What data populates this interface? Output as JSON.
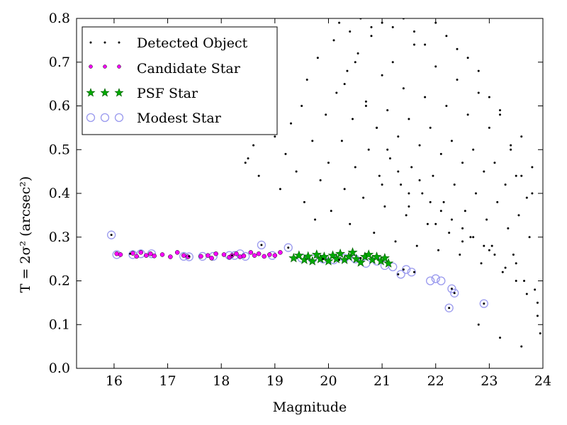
{
  "chart_data": {
    "type": "scatter",
    "xlabel": "Magnitude",
    "ylabel": "T = 2σ² (arcsec²)",
    "xlim": [
      15.3,
      24.0
    ],
    "ylim": [
      0.0,
      0.8
    ],
    "x_ticks": [
      "16",
      "17",
      "18",
      "19",
      "20",
      "21",
      "22",
      "23",
      "24"
    ],
    "y_ticks": [
      "0.0",
      "0.1",
      "0.2",
      "0.3",
      "0.4",
      "0.5",
      "0.6",
      "0.7",
      "0.8"
    ],
    "grid": false,
    "legend_position": "top-left",
    "legend": [
      {
        "label": "Detected Object",
        "marker": "dot",
        "color": "#000000"
      },
      {
        "label": "Candidate Star",
        "marker": "small-circle",
        "color": "#ff00ff"
      },
      {
        "label": "PSF Star",
        "marker": "star",
        "color": "#00aa00"
      },
      {
        "label": "Modest Star",
        "marker": "open-circle",
        "color": "#9999ee"
      }
    ],
    "series": [
      {
        "name": "Candidate Star",
        "x": [
          16.05,
          16.12,
          16.35,
          16.42,
          16.5,
          16.6,
          16.68,
          16.75,
          16.9,
          17.05,
          17.18,
          17.3,
          17.38,
          17.62,
          17.75,
          17.82,
          17.9,
          18.05,
          18.15,
          18.2,
          18.28,
          18.35,
          18.42,
          18.55,
          18.62,
          18.7,
          18.8,
          18.9,
          19.0,
          19.1
        ],
        "y": [
          0.262,
          0.26,
          0.263,
          0.256,
          0.265,
          0.258,
          0.262,
          0.257,
          0.26,
          0.255,
          0.265,
          0.258,
          0.255,
          0.256,
          0.258,
          0.252,
          0.262,
          0.26,
          0.254,
          0.258,
          0.262,
          0.255,
          0.257,
          0.265,
          0.258,
          0.262,
          0.256,
          0.26,
          0.258,
          0.265
        ]
      },
      {
        "name": "PSF Star",
        "x": [
          19.35,
          19.45,
          19.55,
          19.62,
          19.7,
          19.78,
          19.85,
          19.92,
          20.0,
          20.08,
          20.15,
          20.22,
          20.3,
          20.38,
          20.45,
          20.52,
          20.6,
          20.68,
          20.75,
          20.82,
          20.9,
          20.98,
          21.05,
          21.12
        ],
        "y": [
          0.252,
          0.258,
          0.248,
          0.256,
          0.245,
          0.26,
          0.25,
          0.255,
          0.245,
          0.258,
          0.25,
          0.262,
          0.248,
          0.255,
          0.265,
          0.25,
          0.242,
          0.255,
          0.26,
          0.248,
          0.255,
          0.245,
          0.252,
          0.24
        ]
      },
      {
        "name": "Modest Star",
        "x": [
          15.95,
          16.05,
          16.35,
          16.5,
          16.7,
          17.3,
          17.4,
          17.65,
          17.85,
          18.15,
          18.25,
          18.35,
          18.45,
          18.75,
          18.95,
          19.25,
          19.5,
          19.7,
          19.9,
          20.1,
          20.3,
          20.5,
          20.7,
          20.9,
          21.05,
          21.2,
          21.35,
          21.45,
          21.55,
          21.9,
          22.0,
          22.1,
          22.3,
          22.35,
          22.25,
          22.9
        ],
        "y": [
          0.305,
          0.26,
          0.26,
          0.262,
          0.262,
          0.256,
          0.255,
          0.256,
          0.256,
          0.258,
          0.258,
          0.262,
          0.256,
          0.282,
          0.258,
          0.276,
          0.252,
          0.25,
          0.25,
          0.248,
          0.252,
          0.25,
          0.24,
          0.245,
          0.235,
          0.232,
          0.215,
          0.226,
          0.22,
          0.2,
          0.205,
          0.2,
          0.182,
          0.172,
          0.138,
          0.148
        ]
      },
      {
        "name": "Detected Object",
        "x": [
          15.95,
          16.3,
          17.4,
          18.2,
          18.75,
          19.25,
          19.9,
          20.2,
          20.6,
          21.3,
          21.4,
          21.6,
          22.25,
          22.3,
          22.35,
          22.9,
          18.45,
          18.5,
          18.6,
          18.7,
          18.85,
          19.0,
          19.1,
          19.2,
          19.3,
          19.4,
          19.5,
          19.55,
          19.6,
          19.7,
          19.75,
          19.8,
          19.85,
          19.95,
          20.0,
          20.05,
          20.1,
          20.15,
          20.25,
          20.3,
          20.35,
          20.4,
          20.45,
          20.5,
          20.55,
          20.65,
          20.7,
          20.75,
          20.8,
          20.85,
          20.9,
          20.95,
          21.0,
          21.05,
          21.1,
          21.15,
          21.2,
          21.25,
          21.3,
          21.35,
          21.4,
          21.45,
          21.5,
          21.55,
          21.6,
          21.65,
          21.7,
          21.75,
          21.8,
          21.85,
          21.9,
          21.95,
          22.0,
          22.05,
          22.1,
          22.15,
          22.2,
          22.25,
          22.3,
          22.35,
          22.4,
          22.45,
          22.5,
          22.55,
          22.6,
          22.65,
          22.7,
          22.75,
          22.8,
          22.85,
          22.9,
          22.95,
          23.0,
          23.05,
          23.1,
          23.15,
          23.2,
          23.25,
          23.3,
          23.35,
          23.4,
          23.45,
          23.5,
          23.55,
          23.6,
          23.65,
          23.7,
          23.75,
          23.8,
          23.85,
          23.9,
          23.95,
          20.2,
          20.4,
          20.6,
          20.8,
          21.0,
          21.2,
          21.4,
          21.6,
          21.8,
          22.0,
          22.2,
          22.4,
          22.6,
          22.8,
          23.0,
          23.2,
          23.4,
          23.6,
          23.8,
          20.3,
          20.5,
          20.7,
          20.9,
          21.1,
          21.3,
          21.5,
          21.7,
          21.9,
          22.1,
          22.3,
          22.5,
          22.7,
          22.9,
          23.1,
          23.3,
          23.5,
          23.7,
          23.9,
          21.0,
          21.5,
          22.0,
          22.5,
          23.0,
          23.5,
          22.8,
          23.2,
          23.6
        ],
        "y": [
          0.305,
          0.262,
          0.256,
          0.258,
          0.282,
          0.276,
          0.25,
          0.248,
          0.252,
          0.215,
          0.226,
          0.22,
          0.138,
          0.182,
          0.172,
          0.148,
          0.47,
          0.48,
          0.51,
          0.44,
          0.57,
          0.53,
          0.41,
          0.49,
          0.56,
          0.45,
          0.6,
          0.38,
          0.66,
          0.52,
          0.34,
          0.71,
          0.43,
          0.58,
          0.47,
          0.36,
          0.75,
          0.63,
          0.52,
          0.41,
          0.68,
          0.33,
          0.57,
          0.46,
          0.72,
          0.39,
          0.61,
          0.5,
          0.78,
          0.31,
          0.55,
          0.44,
          0.67,
          0.37,
          0.59,
          0.48,
          0.7,
          0.29,
          0.53,
          0.42,
          0.64,
          0.35,
          0.57,
          0.46,
          0.74,
          0.28,
          0.51,
          0.4,
          0.62,
          0.33,
          0.55,
          0.44,
          0.69,
          0.27,
          0.49,
          0.38,
          0.6,
          0.31,
          0.52,
          0.42,
          0.66,
          0.26,
          0.47,
          0.36,
          0.58,
          0.3,
          0.5,
          0.4,
          0.63,
          0.24,
          0.45,
          0.34,
          0.55,
          0.28,
          0.47,
          0.38,
          0.59,
          0.22,
          0.42,
          0.32,
          0.51,
          0.26,
          0.44,
          0.35,
          0.53,
          0.2,
          0.39,
          0.3,
          0.46,
          0.18,
          0.12,
          0.08,
          0.79,
          0.77,
          0.8,
          0.76,
          0.79,
          0.78,
          0.8,
          0.77,
          0.74,
          0.79,
          0.76,
          0.73,
          0.71,
          0.68,
          0.62,
          0.58,
          0.5,
          0.44,
          0.4,
          0.65,
          0.7,
          0.6,
          0.55,
          0.5,
          0.45,
          0.4,
          0.43,
          0.38,
          0.36,
          0.34,
          0.32,
          0.3,
          0.28,
          0.26,
          0.23,
          0.2,
          0.17,
          0.15,
          0.42,
          0.37,
          0.33,
          0.29,
          0.27,
          0.24,
          0.1,
          0.07,
          0.05
        ]
      }
    ]
  },
  "colors": {
    "detected": "#000000",
    "candidate_fill": "#ff00ff",
    "psf_star": "#00aa00",
    "modest_edge": "#9999ee"
  }
}
